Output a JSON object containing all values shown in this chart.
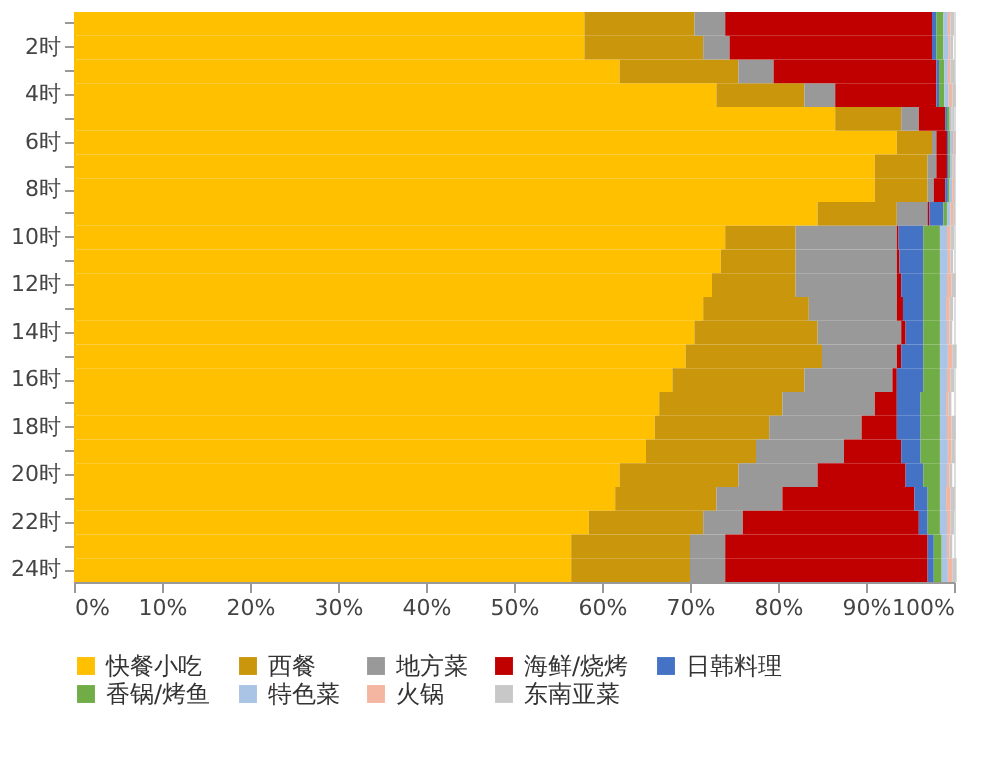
{
  "chart_data": {
    "type": "bar",
    "orientation": "horizontal",
    "stacked": true,
    "legend": "bottom",
    "grid": false,
    "categories": [
      null,
      "2时",
      null,
      "4时",
      null,
      "6时",
      null,
      "8时",
      null,
      "10时",
      null,
      "12时",
      null,
      "14时",
      null,
      "16时",
      null,
      "18时",
      null,
      "20时",
      null,
      "22时",
      null,
      "24时"
    ],
    "xlim": [
      0,
      100
    ],
    "xticks": [
      {
        "value": 0,
        "label": "0%"
      },
      {
        "value": 10,
        "label": "10%"
      },
      {
        "value": 20,
        "label": "20%"
      },
      {
        "value": 30,
        "label": "30%"
      },
      {
        "value": 40,
        "label": "40%"
      },
      {
        "value": 50,
        "label": "50%"
      },
      {
        "value": 60,
        "label": "60%"
      },
      {
        "value": 70,
        "label": "70%"
      },
      {
        "value": 80,
        "label": "80%"
      },
      {
        "value": 90,
        "label": "90%"
      },
      {
        "value": 100,
        "label": "100%"
      }
    ],
    "series": [
      {
        "name": "快餐小吃",
        "color": "#ffc000",
        "values": [
          58,
          58,
          62,
          73,
          86.5,
          93.5,
          91,
          91,
          84.5,
          74,
          73.5,
          72.5,
          71.5,
          70.5,
          69.5,
          68,
          66.5,
          66,
          65,
          62,
          61.5,
          58.5,
          56.5,
          56.5
        ]
      },
      {
        "name": "西餐",
        "color": "#c9960c",
        "values": [
          12.5,
          13.5,
          13.5,
          10,
          7.5,
          4,
          6,
          6,
          9,
          8,
          8.5,
          9.5,
          12,
          14,
          15.5,
          15,
          14,
          13,
          12.5,
          13.5,
          11.5,
          13,
          13.5,
          13.5
        ]
      },
      {
        "name": "地方菜",
        "color": "#999999",
        "values": [
          3.5,
          3,
          4,
          3.5,
          2,
          0.5,
          1,
          0.7,
          3.5,
          11.5,
          11.5,
          11.5,
          10,
          9.5,
          8.5,
          10,
          10.5,
          10.5,
          10,
          9,
          7.5,
          4.5,
          4,
          4
        ]
      },
      {
        "name": "海鲜/烧烤",
        "color": "#c00000",
        "values": [
          23.5,
          23,
          18.5,
          11.5,
          3,
          1.2,
          1.2,
          1.3,
          0.2,
          0.2,
          0.3,
          0.5,
          0.7,
          0.5,
          0.5,
          0.5,
          2.5,
          4,
          6.5,
          10,
          15,
          20,
          23,
          23
        ]
      },
      {
        "name": "日韩料理",
        "color": "#4472c4",
        "values": [
          0.5,
          0.5,
          0.3,
          0.3,
          0.2,
          0.2,
          0.2,
          0.3,
          1.6,
          2.8,
          2.7,
          2.5,
          2.3,
          2,
          2.5,
          3,
          2.7,
          2.7,
          2.2,
          2,
          1.5,
          1,
          0.7,
          0.7
        ]
      },
      {
        "name": "香锅/烤鱼",
        "color": "#70ad47",
        "values": [
          0.8,
          0.8,
          0.6,
          0.6,
          0.3,
          0.2,
          0.2,
          0.2,
          0.4,
          1.9,
          1.9,
          1.9,
          1.9,
          1.9,
          1.9,
          1.9,
          2.2,
          2.2,
          2.2,
          1.9,
          1.4,
          1.4,
          0.9,
          0.9
        ]
      },
      {
        "name": "特色菜",
        "color": "#a9c4e4",
        "values": [
          0.5,
          0.6,
          0.4,
          0.5,
          0.2,
          0.3,
          0.2,
          0.3,
          0.4,
          0.8,
          0.9,
          0.8,
          0.7,
          0.8,
          0.9,
          0.8,
          0.7,
          0.8,
          0.9,
          0.8,
          0.7,
          0.8,
          0.6,
          0.7
        ]
      },
      {
        "name": "火锅",
        "color": "#f4b6a0",
        "values": [
          0.3,
          0.2,
          0.3,
          0.4,
          0.1,
          0.2,
          0.1,
          0.2,
          0.3,
          0.4,
          0.3,
          0.5,
          0.4,
          0.3,
          0.5,
          0.4,
          0.3,
          0.5,
          0.4,
          0.3,
          0.5,
          0.4,
          0.3,
          0.5
        ]
      },
      {
        "name": "东南亚菜",
        "color": "#c8c8c8",
        "values": [
          0.4,
          0.3,
          0.5,
          0.4,
          0.2,
          0.1,
          0.2,
          0.1,
          0.2,
          0.4,
          0.3,
          0.5,
          0.4,
          0.3,
          0.5,
          0.4,
          0.3,
          0.5,
          0.4,
          0.3,
          0.5,
          0.4,
          0.3,
          0.5
        ]
      }
    ]
  }
}
